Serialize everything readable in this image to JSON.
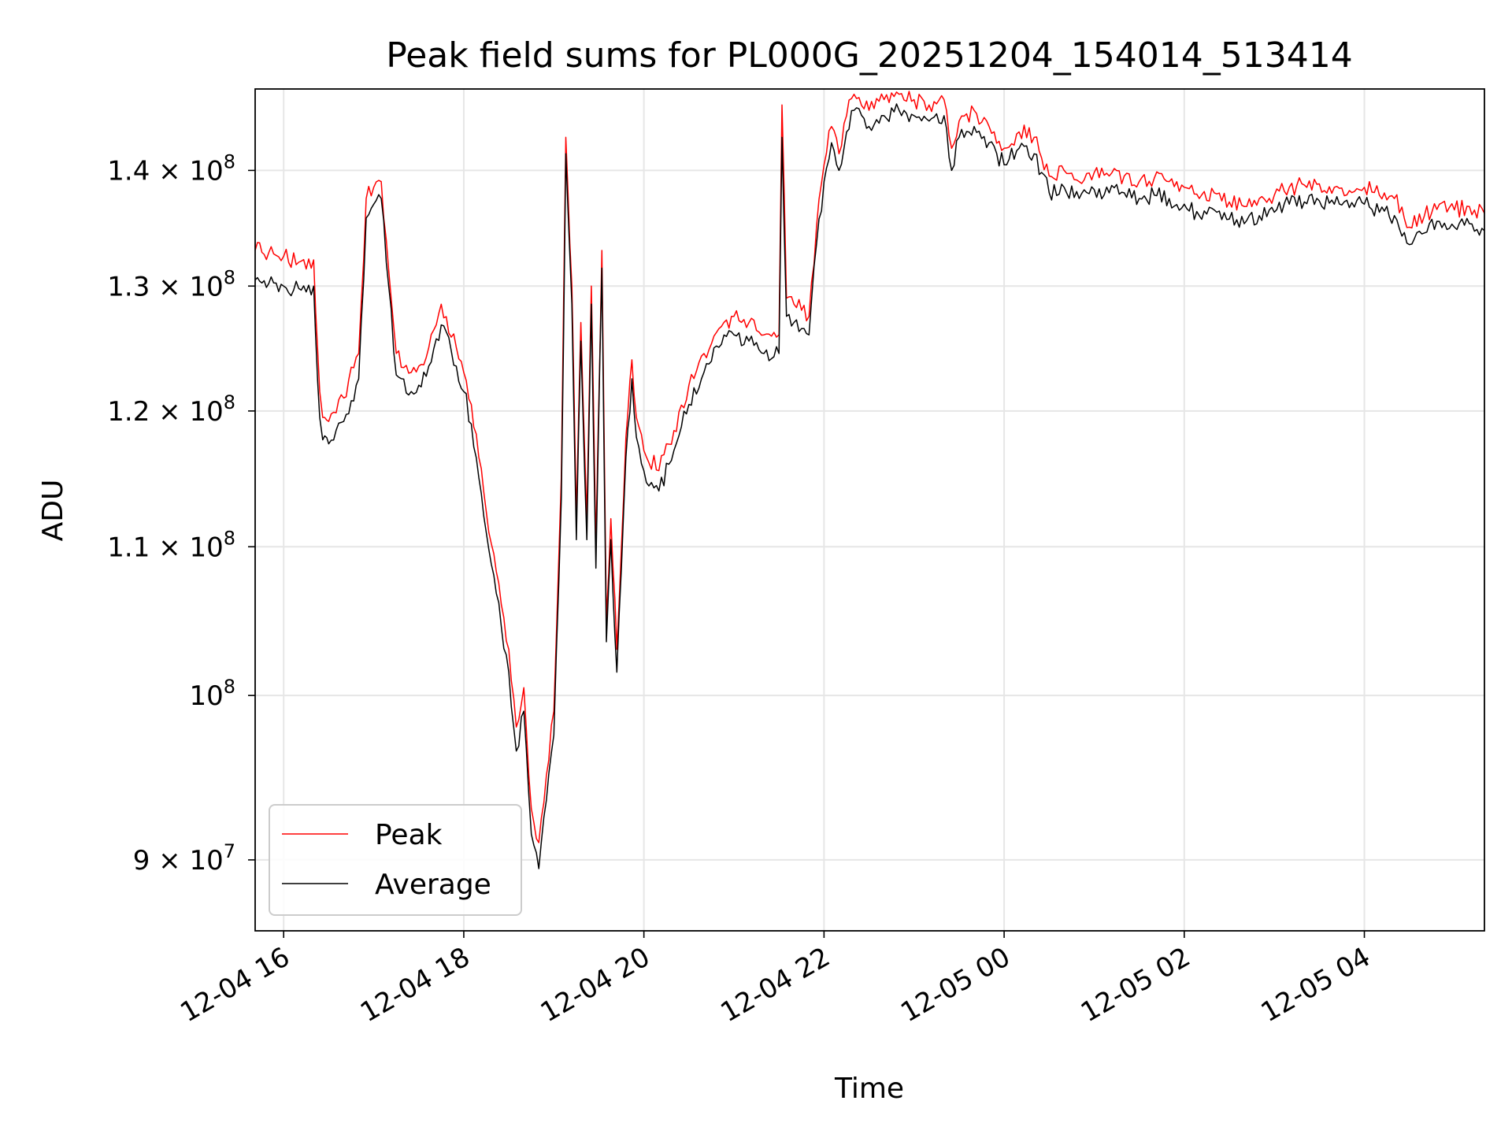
{
  "chart_data": {
    "type": "line",
    "title": "Peak field sums for PL000G_20251204_154014_513414",
    "xlabel": "Time",
    "ylabel": "ADU",
    "x_axis": {
      "kind": "datetime",
      "range": [
        "2025-12-04 15:41",
        "2025-12-05 05:20"
      ],
      "ticks": [
        "2025-12-04 16:00",
        "2025-12-04 18:00",
        "2025-12-04 20:00",
        "2025-12-04 22:00",
        "2025-12-05 00:00",
        "2025-12-05 02:00",
        "2025-12-05 04:00"
      ],
      "tick_labels": [
        "12-04 16",
        "12-04 18",
        "12-04 20",
        "12-04 22",
        "12-05 00",
        "12-05 02",
        "12-05 04"
      ]
    },
    "y_axis": {
      "scale": "log",
      "range": [
        86000000,
        147500000
      ],
      "ticks": [
        90000000,
        100000000,
        110000000,
        120000000,
        130000000,
        140000000
      ],
      "tick_labels": [
        {
          "mant": "9",
          "exp": "7"
        },
        {
          "mant": "",
          "exp": "8"
        },
        {
          "mant": "1.1",
          "exp": "8"
        },
        {
          "mant": "1.2",
          "exp": "8"
        },
        {
          "mant": "1.3",
          "exp": "8"
        },
        {
          "mant": "1.4",
          "exp": "8"
        }
      ]
    },
    "grid": true,
    "legend": {
      "position": "lower left",
      "entries": [
        "Peak",
        "Average"
      ]
    },
    "colors": {
      "peak": "#ff0000",
      "average": "#000000"
    },
    "series": [
      {
        "name": "Peak",
        "color": "#ff0000",
        "x": [
          "2025-12-04 15:41",
          "2025-12-04 15:50",
          "2025-12-04 16:00",
          "2025-12-04 16:10",
          "2025-12-04 16:20",
          "2025-12-04 16:24",
          "2025-12-04 16:26",
          "2025-12-04 16:30",
          "2025-12-04 16:40",
          "2025-12-04 16:50",
          "2025-12-04 16:55",
          "2025-12-04 17:00",
          "2025-12-04 17:05",
          "2025-12-04 17:15",
          "2025-12-04 17:25",
          "2025-12-04 17:30",
          "2025-12-04 17:35",
          "2025-12-04 17:45",
          "2025-12-04 17:55",
          "2025-12-04 18:00",
          "2025-12-04 18:05",
          "2025-12-04 18:10",
          "2025-12-04 18:15",
          "2025-12-04 18:20",
          "2025-12-04 18:25",
          "2025-12-04 18:30",
          "2025-12-04 18:35",
          "2025-12-04 18:40",
          "2025-12-04 18:45",
          "2025-12-04 18:50",
          "2025-12-04 18:55",
          "2025-12-04 19:00",
          "2025-12-04 19:05",
          "2025-12-04 19:08",
          "2025-12-04 19:12",
          "2025-12-04 19:15",
          "2025-12-04 19:18",
          "2025-12-04 19:22",
          "2025-12-04 19:25",
          "2025-12-04 19:28",
          "2025-12-04 19:32",
          "2025-12-04 19:35",
          "2025-12-04 19:38",
          "2025-12-04 19:42",
          "2025-12-04 19:45",
          "2025-12-04 19:48",
          "2025-12-04 19:52",
          "2025-12-04 19:55",
          "2025-12-04 20:00",
          "2025-12-04 20:10",
          "2025-12-04 20:20",
          "2025-12-04 20:30",
          "2025-12-04 20:40",
          "2025-12-04 20:50",
          "2025-12-04 21:00",
          "2025-12-04 21:10",
          "2025-12-04 21:20",
          "2025-12-04 21:30",
          "2025-12-04 21:32",
          "2025-12-04 21:35",
          "2025-12-04 21:40",
          "2025-12-04 21:45",
          "2025-12-04 21:50",
          "2025-12-04 21:55",
          "2025-12-04 22:00",
          "2025-12-04 22:05",
          "2025-12-04 22:10",
          "2025-12-04 22:15",
          "2025-12-04 22:20",
          "2025-12-04 22:30",
          "2025-12-04 22:40",
          "2025-12-04 22:50",
          "2025-12-04 23:00",
          "2025-12-04 23:10",
          "2025-12-04 23:20",
          "2025-12-04 23:25",
          "2025-12-04 23:30",
          "2025-12-04 23:40",
          "2025-12-04 23:50",
          "2025-12-05 00:00",
          "2025-12-05 00:10",
          "2025-12-05 00:20",
          "2025-12-05 00:30",
          "2025-12-05 00:40",
          "2025-12-05 00:50",
          "2025-12-05 01:00",
          "2025-12-05 01:10",
          "2025-12-05 01:20",
          "2025-12-05 01:30",
          "2025-12-05 01:40",
          "2025-12-05 01:50",
          "2025-12-05 02:00",
          "2025-12-05 02:10",
          "2025-12-05 02:20",
          "2025-12-05 02:30",
          "2025-12-05 02:40",
          "2025-12-05 02:50",
          "2025-12-05 03:00",
          "2025-12-05 03:10",
          "2025-12-05 03:20",
          "2025-12-05 03:30",
          "2025-12-05 03:40",
          "2025-12-05 03:50",
          "2025-12-05 04:00",
          "2025-12-05 04:10",
          "2025-12-05 04:20",
          "2025-12-05 04:30",
          "2025-12-05 04:40",
          "2025-12-05 04:50",
          "2025-12-05 05:00",
          "2025-12-05 05:10",
          "2025-12-05 05:20"
        ],
        "values": [
          133000000,
          132800000,
          132500000,
          132000000,
          132200000,
          121500000,
          119500000,
          119200000,
          121000000,
          124500000,
          137500000,
          138500000,
          139000000,
          124500000,
          123000000,
          123500000,
          124200000,
          128500000,
          125000000,
          123000000,
          120500000,
          116500000,
          112500000,
          109500000,
          106000000,
          103000000,
          98000000,
          100500000,
          93000000,
          91000000,
          95000000,
          99000000,
          115000000,
          143000000,
          130000000,
          112000000,
          127000000,
          112000000,
          130000000,
          110000000,
          133000000,
          105000000,
          112000000,
          103000000,
          110000000,
          118000000,
          124000000,
          119500000,
          117000000,
          115500000,
          118500000,
          122000000,
          124500000,
          126500000,
          127500000,
          127000000,
          126000000,
          126000000,
          146000000,
          129000000,
          128500000,
          128000000,
          127500000,
          135000000,
          140500000,
          144000000,
          141500000,
          145000000,
          147000000,
          145500000,
          146500000,
          147000000,
          146500000,
          146000000,
          146500000,
          142000000,
          144500000,
          145500000,
          144000000,
          142000000,
          143500000,
          143000000,
          139500000,
          140000000,
          139000000,
          139800000,
          139500000,
          139500000,
          139000000,
          139300000,
          139000000,
          138500000,
          137500000,
          138000000,
          137200000,
          136800000,
          137500000,
          137800000,
          138500000,
          138700000,
          138800000,
          138500000,
          138200000,
          138500000,
          137800000,
          137500000,
          135000000,
          136000000,
          137000000,
          136500000,
          136800000,
          136200000
        ]
      },
      {
        "name": "Average",
        "color": "#000000",
        "x": [
          "2025-12-04 15:41",
          "2025-12-04 15:50",
          "2025-12-04 16:00",
          "2025-12-04 16:10",
          "2025-12-04 16:20",
          "2025-12-04 16:24",
          "2025-12-04 16:26",
          "2025-12-04 16:30",
          "2025-12-04 16:40",
          "2025-12-04 16:50",
          "2025-12-04 16:55",
          "2025-12-04 17:00",
          "2025-12-04 17:05",
          "2025-12-04 17:15",
          "2025-12-04 17:25",
          "2025-12-04 17:30",
          "2025-12-04 17:35",
          "2025-12-04 17:45",
          "2025-12-04 17:55",
          "2025-12-04 18:00",
          "2025-12-04 18:05",
          "2025-12-04 18:10",
          "2025-12-04 18:15",
          "2025-12-04 18:20",
          "2025-12-04 18:25",
          "2025-12-04 18:30",
          "2025-12-04 18:35",
          "2025-12-04 18:40",
          "2025-12-04 18:45",
          "2025-12-04 18:50",
          "2025-12-04 18:55",
          "2025-12-04 19:00",
          "2025-12-04 19:05",
          "2025-12-04 19:08",
          "2025-12-04 19:12",
          "2025-12-04 19:15",
          "2025-12-04 19:18",
          "2025-12-04 19:22",
          "2025-12-04 19:25",
          "2025-12-04 19:28",
          "2025-12-04 19:32",
          "2025-12-04 19:35",
          "2025-12-04 19:38",
          "2025-12-04 19:42",
          "2025-12-04 19:45",
          "2025-12-04 19:48",
          "2025-12-04 19:52",
          "2025-12-04 19:55",
          "2025-12-04 20:00",
          "2025-12-04 20:10",
          "2025-12-04 20:20",
          "2025-12-04 20:30",
          "2025-12-04 20:40",
          "2025-12-04 20:50",
          "2025-12-04 21:00",
          "2025-12-04 21:10",
          "2025-12-04 21:20",
          "2025-12-04 21:30",
          "2025-12-04 21:32",
          "2025-12-04 21:35",
          "2025-12-04 21:40",
          "2025-12-04 21:45",
          "2025-12-04 21:50",
          "2025-12-04 21:55",
          "2025-12-04 22:00",
          "2025-12-04 22:05",
          "2025-12-04 22:10",
          "2025-12-04 22:15",
          "2025-12-04 22:20",
          "2025-12-04 22:30",
          "2025-12-04 22:40",
          "2025-12-04 22:50",
          "2025-12-04 23:00",
          "2025-12-04 23:10",
          "2025-12-04 23:20",
          "2025-12-04 23:25",
          "2025-12-04 23:30",
          "2025-12-04 23:40",
          "2025-12-04 23:50",
          "2025-12-05 00:00",
          "2025-12-05 00:10",
          "2025-12-05 00:20",
          "2025-12-05 00:30",
          "2025-12-05 00:40",
          "2025-12-05 00:50",
          "2025-12-05 01:00",
          "2025-12-05 01:10",
          "2025-12-05 01:20",
          "2025-12-05 01:30",
          "2025-12-05 01:40",
          "2025-12-05 01:50",
          "2025-12-05 02:00",
          "2025-12-05 02:10",
          "2025-12-05 02:20",
          "2025-12-05 02:30",
          "2025-12-05 02:40",
          "2025-12-05 02:50",
          "2025-12-05 03:00",
          "2025-12-05 03:10",
          "2025-12-05 03:20",
          "2025-12-05 03:30",
          "2025-12-05 03:40",
          "2025-12-05 03:50",
          "2025-12-05 04:00",
          "2025-12-05 04:10",
          "2025-12-05 04:20",
          "2025-12-05 04:30",
          "2025-12-05 04:40",
          "2025-12-05 04:50",
          "2025-12-05 05:00",
          "2025-12-05 05:10",
          "2025-12-05 05:20"
        ],
        "values": [
          130500000,
          130200000,
          130000000,
          129800000,
          130000000,
          119500000,
          117800000,
          117500000,
          119200000,
          122500000,
          135800000,
          137000000,
          137500000,
          122800000,
          121500000,
          122000000,
          122700000,
          126800000,
          123500000,
          121500000,
          119000000,
          115000000,
          111000000,
          108000000,
          104500000,
          101500000,
          96500000,
          99000000,
          91500000,
          89500000,
          93500000,
          97500000,
          113500000,
          141500000,
          128500000,
          110500000,
          125500000,
          110500000,
          128500000,
          108500000,
          131500000,
          103500000,
          110500000,
          101500000,
          108500000,
          116500000,
          122500000,
          118000000,
          115500000,
          114000000,
          117000000,
          120500000,
          123000000,
          125000000,
          126000000,
          125500000,
          124500000,
          124500000,
          143000000,
          127500000,
          127000000,
          126500000,
          126000000,
          133500000,
          139000000,
          142500000,
          140000000,
          143500000,
          145500000,
          144000000,
          145000000,
          145500000,
          145000000,
          144500000,
          145000000,
          140000000,
          143000000,
          144000000,
          142500000,
          140500000,
          142000000,
          141500000,
          138000000,
          138500000,
          137500000,
          138300000,
          138000000,
          138000000,
          137500000,
          137800000,
          137500000,
          137000000,
          136000000,
          136500000,
          135700000,
          135300000,
          136000000,
          136300000,
          137000000,
          137200000,
          137300000,
          137000000,
          136700000,
          137000000,
          136300000,
          136000000,
          133500000,
          134500000,
          135500000,
          135000000,
          135300000,
          134700000
        ]
      }
    ]
  }
}
